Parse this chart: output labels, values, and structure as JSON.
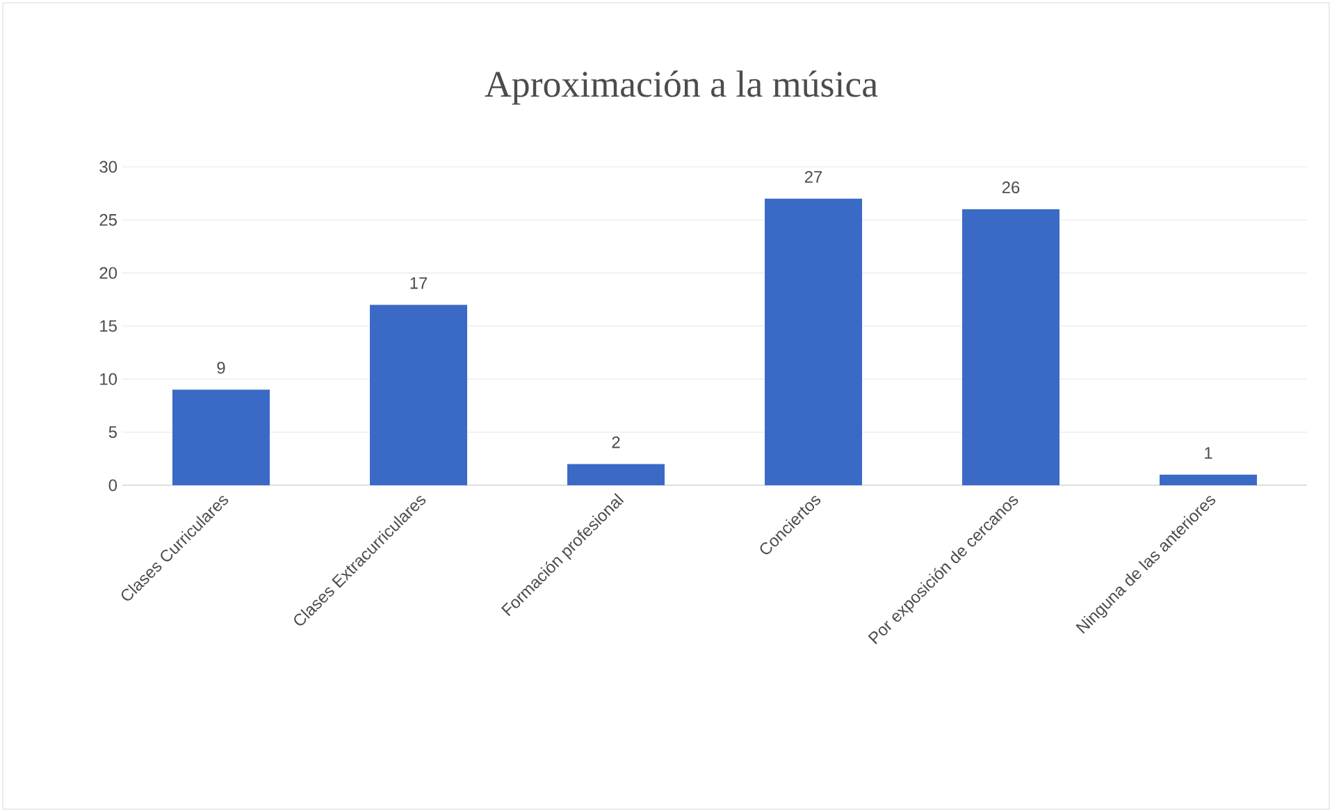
{
  "chart_data": {
    "type": "bar",
    "title": "Aproximación a la música",
    "categories": [
      "Clases Curriculares",
      "Clases Extracurriculares",
      "Formación profesional",
      "Conciertos",
      "Por exposición de cercanos",
      "Ninguna de las anteriores"
    ],
    "values": [
      9,
      17,
      2,
      27,
      26,
      1
    ],
    "color": "#3b69c6",
    "ylim": [
      0,
      30
    ],
    "yticks": [
      0,
      5,
      10,
      15,
      20,
      25,
      30
    ],
    "grid": "y",
    "data_labels": true
  }
}
